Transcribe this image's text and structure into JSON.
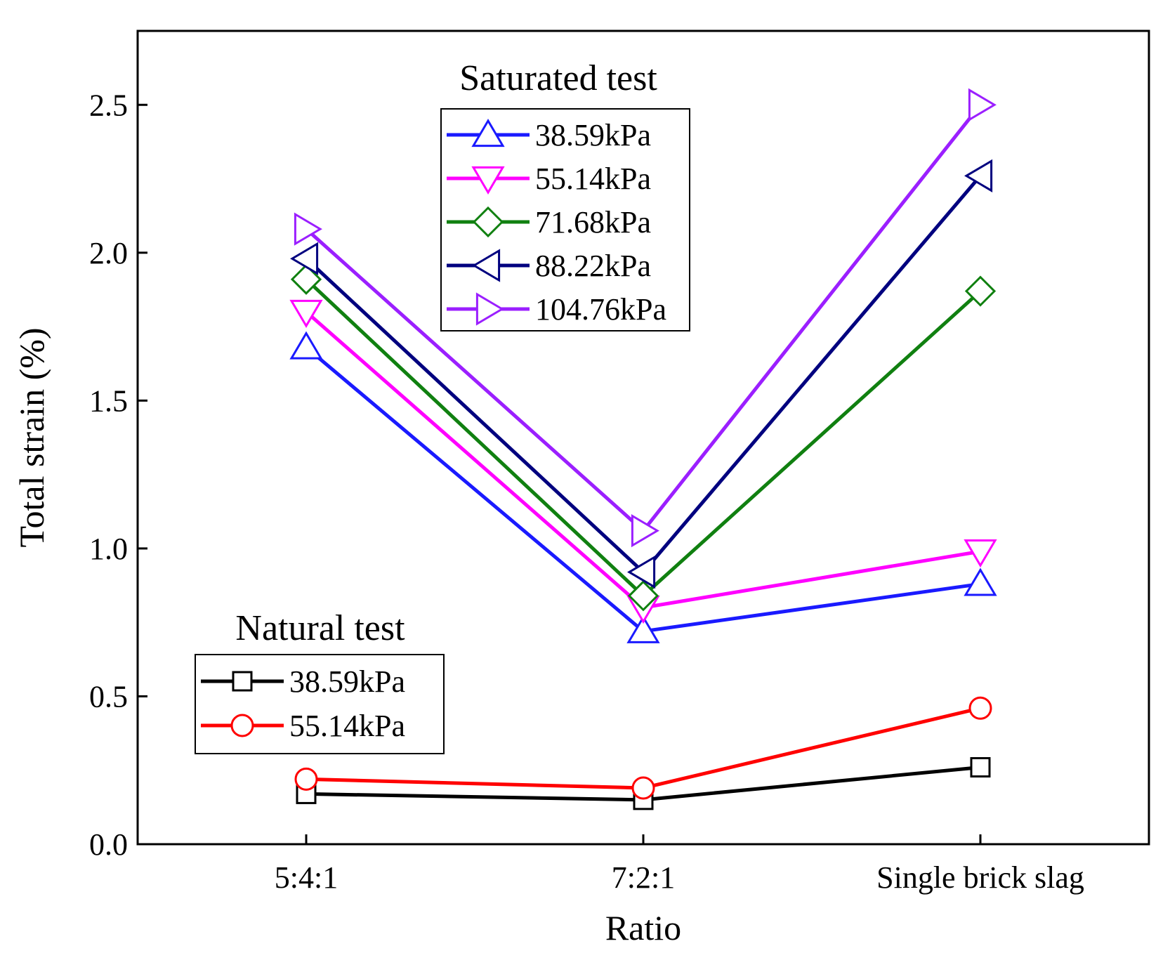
{
  "chart_data": {
    "type": "line",
    "xlabel": "Ratio",
    "ylabel": "Total strain (%)",
    "categories": [
      "5:4:1",
      "7:2:1",
      "Single brick slag"
    ],
    "ylim": [
      0,
      2.75
    ],
    "yticks": [
      "0.0",
      "0.5",
      "1.0",
      "1.5",
      "2.0",
      "2.5"
    ],
    "grid": false,
    "legends": [
      {
        "title": "Saturated test",
        "placement": "top-center",
        "series_indices": [
          0,
          1,
          2,
          3,
          4
        ]
      },
      {
        "title": "Natural test",
        "placement": "bottom-left",
        "series_indices": [
          5,
          6
        ]
      }
    ],
    "series": [
      {
        "name": "38.59kPa",
        "group": "Saturated test",
        "color": "#1a1aff",
        "marker": "triangle-up",
        "values": [
          1.68,
          0.72,
          0.88
        ]
      },
      {
        "name": "55.14kPa",
        "group": "Saturated test",
        "color": "#ff00ff",
        "marker": "triangle-down",
        "values": [
          1.8,
          0.8,
          0.99
        ]
      },
      {
        "name": "71.68kPa",
        "group": "Saturated test",
        "color": "#108010",
        "marker": "diamond",
        "values": [
          1.91,
          0.84,
          1.87
        ]
      },
      {
        "name": "88.22kPa",
        "group": "Saturated test",
        "color": "#00007f",
        "marker": "triangle-left",
        "values": [
          1.98,
          0.92,
          2.26
        ]
      },
      {
        "name": "104.76kPa",
        "group": "Saturated test",
        "color": "#9b1fff",
        "marker": "triangle-right",
        "values": [
          2.08,
          1.06,
          2.5
        ]
      },
      {
        "name": "38.59kPa",
        "group": "Natural test",
        "color": "#000000",
        "marker": "square",
        "values": [
          0.17,
          0.15,
          0.26
        ]
      },
      {
        "name": "55.14kPa",
        "group": "Natural test",
        "color": "#ff0000",
        "marker": "circle",
        "values": [
          0.22,
          0.19,
          0.46
        ]
      }
    ]
  }
}
